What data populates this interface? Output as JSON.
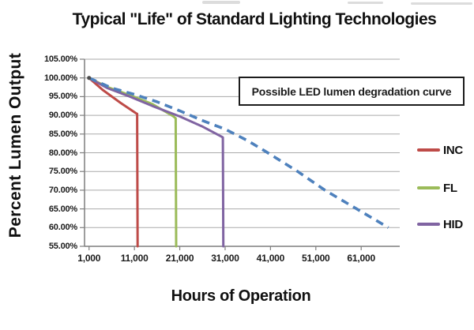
{
  "title": "Typical \"Life\" of Standard Lighting Technologies",
  "axes": {
    "y_title": "Percent Lumen Output",
    "x_title": "Hours of Operation"
  },
  "annotation_box": {
    "text": "Possible LED lumen degradation curve"
  },
  "legend": {
    "items": [
      {
        "label": "INC",
        "color": "#be4b48"
      },
      {
        "label": "FL",
        "color": "#9bbb59"
      },
      {
        "label": "HID",
        "color": "#8064a2"
      }
    ]
  },
  "chart_data": {
    "type": "line",
    "title": "Typical \"Life\" of Standard Lighting Technologies",
    "xlabel": "Hours of Operation",
    "ylabel": "Percent Lumen Output",
    "xlim": [
      0,
      69500
    ],
    "ylim": [
      55,
      105
    ],
    "grid": "horizontal",
    "legend_position": "right",
    "x_tick_values": [
      1000,
      11000,
      21000,
      31000,
      41000,
      51000,
      61000
    ],
    "x_tick_labels": [
      "1,000",
      "11,000",
      "21,000",
      "31,000",
      "41,000",
      "51,000",
      "61,000"
    ],
    "y_tick_values": [
      105,
      100,
      95,
      90,
      85,
      80,
      75,
      70,
      65,
      60,
      55
    ],
    "y_tick_labels": [
      "105.00%",
      "100.00%",
      "95.00%",
      "90.00%",
      "85.00%",
      "80.00%",
      "75.00%",
      "70.00%",
      "65.00%",
      "60.00%",
      "55.00%"
    ],
    "annotation": "Possible LED lumen degradation curve",
    "start_marker": [
      1000,
      100
    ],
    "series": [
      {
        "name": "INC",
        "color": "#be4b48",
        "dash": false,
        "points": [
          [
            1000,
            100
          ],
          [
            4000,
            96.8
          ],
          [
            8000,
            93.3
          ],
          [
            11300,
            90.6
          ],
          [
            11600,
            90.4
          ],
          [
            11700,
            55
          ]
        ]
      },
      {
        "name": "FL",
        "color": "#9bbb59",
        "dash": false,
        "points": [
          [
            1000,
            100
          ],
          [
            5000,
            97.6
          ],
          [
            10000,
            95.4
          ],
          [
            15000,
            93.0
          ],
          [
            19500,
            89.8
          ],
          [
            20100,
            89.2
          ],
          [
            20200,
            55
          ]
        ]
      },
      {
        "name": "HID",
        "color": "#8064a2",
        "dash": false,
        "points": [
          [
            1000,
            100
          ],
          [
            5000,
            97.3
          ],
          [
            10000,
            95.0
          ],
          [
            15000,
            92.5
          ],
          [
            21000,
            89.7
          ],
          [
            26000,
            87.0
          ],
          [
            30200,
            84.3
          ],
          [
            30500,
            84.1
          ],
          [
            30600,
            55
          ]
        ]
      },
      {
        "name": "Possible LED degradation",
        "color": "#4e81bd",
        "dash": true,
        "points": [
          [
            1000,
            100
          ],
          [
            6000,
            97.3
          ],
          [
            11000,
            95.6
          ],
          [
            16000,
            93.6
          ],
          [
            21000,
            91.2
          ],
          [
            26000,
            88.6
          ],
          [
            31000,
            86.3
          ],
          [
            36000,
            83.2
          ],
          [
            40000,
            80.3
          ],
          [
            47000,
            75.0
          ],
          [
            53000,
            70.0
          ],
          [
            60000,
            65.0
          ],
          [
            67000,
            60.0
          ]
        ]
      }
    ]
  }
}
